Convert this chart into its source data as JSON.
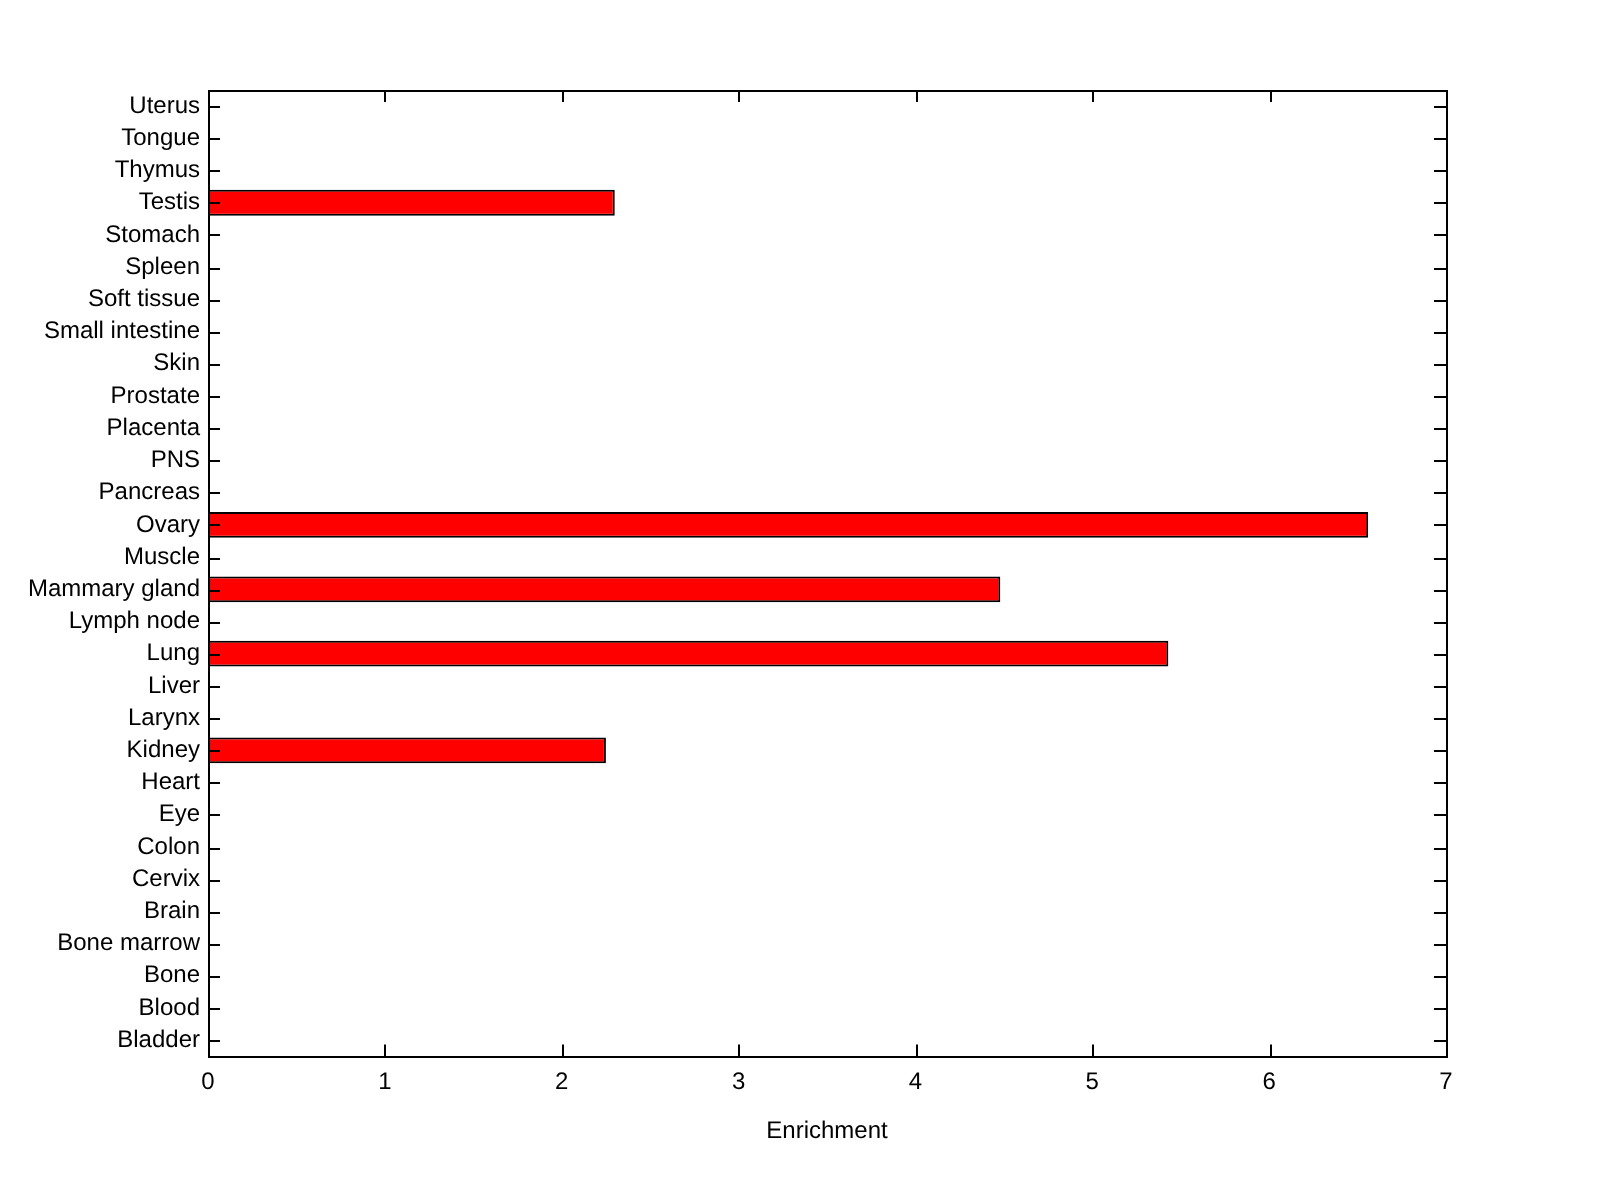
{
  "chart_data": {
    "type": "bar",
    "orientation": "horizontal",
    "xlabel": "Enrichment",
    "categories": [
      "Uterus",
      "Tongue",
      "Thymus",
      "Testis",
      "Stomach",
      "Spleen",
      "Soft tissue",
      "Small intestine",
      "Skin",
      "Prostate",
      "Placenta",
      "PNS",
      "Pancreas",
      "Ovary",
      "Muscle",
      "Mammary gland",
      "Lymph node",
      "Lung",
      "Liver",
      "Larynx",
      "Kidney",
      "Heart",
      "Eye",
      "Colon",
      "Cervix",
      "Brain",
      "Bone marrow",
      "Bone",
      "Blood",
      "Bladder"
    ],
    "values": [
      0,
      0,
      0,
      2.3,
      0,
      0,
      0,
      0,
      0,
      0,
      0,
      0,
      0,
      6.56,
      0,
      4.48,
      0,
      5.43,
      0,
      0,
      2.25,
      0,
      0,
      0,
      0,
      0,
      0,
      0,
      0,
      0
    ],
    "color": "#ff0000",
    "xlim": [
      0,
      7
    ],
    "xticks": [
      0,
      1,
      2,
      3,
      4,
      5,
      6,
      7
    ],
    "grid": false,
    "legend": false
  }
}
